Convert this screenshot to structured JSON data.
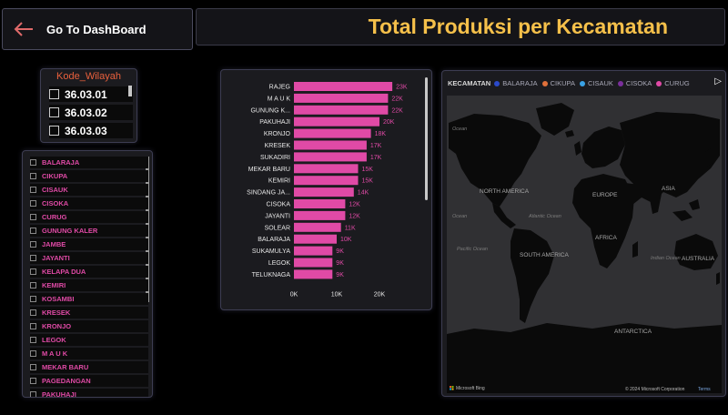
{
  "header": {
    "back_label": "Go To DashBoard",
    "title": "Total Produksi per Kecamatan",
    "title_color": "#f5c04a",
    "back_arrow_color": "#e06a6a",
    "back_icon": "arrow-left-icon"
  },
  "kode_slicer": {
    "title": "Kode_Wilayah",
    "title_color": "#e8603c",
    "items": [
      "36.03.01",
      "36.03.02",
      "36.03.03"
    ]
  },
  "kecamatan_slicer": {
    "item_color": "#e04aa6",
    "items": [
      "BALARAJA",
      "CIKUPA",
      "CISAUK",
      "CISOKA",
      "CURUG",
      "GUNUNG KALER",
      "JAMBE",
      "JAYANTI",
      "KELAPA DUA",
      "KEMIRI",
      "KOSAMBI",
      "KRESEK",
      "KRONJO",
      "LEGOK",
      "M A U K",
      "MEKAR BARU",
      "PAGEDANGAN",
      "PAKUHAJI"
    ]
  },
  "chart_data": {
    "type": "bar",
    "orientation": "horizontal",
    "bar_color": "#e04aa6",
    "categories": [
      "RAJEG",
      "M A U K",
      "GUNUNG K...",
      "PAKUHAJI",
      "KRONJO",
      "KRESEK",
      "SUKADIRI",
      "MEKAR BARU",
      "KEMIRI",
      "SINDANG JA...",
      "CISOKA",
      "JAYANTI",
      "SOLEAR",
      "BALARAJA",
      "SUKAMULYA",
      "LEGOK",
      "TELUKNAGA"
    ],
    "values": [
      23,
      22,
      22,
      20,
      18,
      17,
      17,
      15,
      15,
      14,
      12,
      12,
      11,
      10,
      9,
      9,
      9
    ],
    "data_labels": [
      "23K",
      "22K",
      "22K",
      "20K",
      "18K",
      "17K",
      "17K",
      "15K",
      "15K",
      "14K",
      "12K",
      "12K",
      "11K",
      "10K",
      "9K",
      "9K",
      "9K"
    ],
    "x_ticks": [
      "0K",
      "10K",
      "20K"
    ],
    "xlim": [
      0,
      25
    ]
  },
  "map": {
    "legend_title": "KECAMATAN",
    "legend": [
      {
        "label": "BALARAJA",
        "color": "#2b4acb"
      },
      {
        "label": "CIKUPA",
        "color": "#e0703a"
      },
      {
        "label": "CISAUK",
        "color": "#3aa2e6"
      },
      {
        "label": "CISOKA",
        "color": "#7a2f9c"
      },
      {
        "label": "CURUG",
        "color": "#e04aa6"
      }
    ],
    "legend_next": "▷",
    "labels": {
      "north_america": "NORTH AMERICA",
      "europe": "EUROPE",
      "asia": "ASIA",
      "africa": "AFRICA",
      "south_america": "SOUTH AMERICA",
      "australia": "AUSTRALIA",
      "antarctica": "ANTARCTICA"
    },
    "ocean_labels": {
      "atlantic": "Atlantic Ocean",
      "pacific": "Pacific Ocean",
      "indian": "Indian Ocean",
      "ocean_nw": "Ocean",
      "ocean_w": "Ocean"
    },
    "footer_brand": "Microsoft Bing",
    "footer_copyright": "© 2024 Microsoft Corporation",
    "footer_terms": "Terms"
  }
}
